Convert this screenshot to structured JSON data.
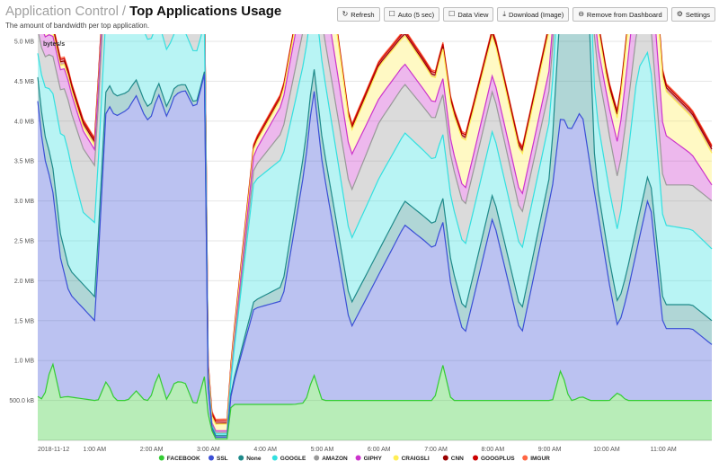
{
  "header": {
    "breadcrumb_parent": "Application Control",
    "breadcrumb_sep": "/",
    "title": "Top Applications Usage",
    "subtitle": "The amount of bandwidth per top application."
  },
  "toolbar": {
    "refresh": "Refresh",
    "auto": "Auto (5 sec)",
    "data_view": "Data View",
    "download": "Download (Image)",
    "remove": "Remove from Dashboard",
    "settings": "Settings"
  },
  "chart_data": {
    "type": "area",
    "stacked": true,
    "ylabel": "bytes/s",
    "y_ticks": [
      "500.0 kB",
      "1.0 MB",
      "1.5 MB",
      "2.0 MB",
      "2.5 MB",
      "3.0 MB",
      "3.5 MB",
      "4.0 MB",
      "4.5 MB",
      "5.0 MB"
    ],
    "y_tick_values": [
      0.5,
      1.0,
      1.5,
      2.0,
      2.5,
      3.0,
      3.5,
      4.0,
      4.5,
      5.0
    ],
    "ylim": [
      0,
      5.0
    ],
    "x_ticks": [
      "2018-11-12",
      "1:00 AM",
      "2:00 AM",
      "3:00 AM",
      "4:00 AM",
      "5:00 AM",
      "6:00 AM",
      "7:00 AM",
      "8:00 AM",
      "9:00 AM",
      "10:00 AM",
      "11:00 AM"
    ],
    "x_tick_values": [
      0,
      1,
      2,
      3,
      4,
      5,
      6,
      7,
      8,
      9,
      10,
      11
    ],
    "xlim": [
      0,
      11.85
    ],
    "legend_position": "bottom-center",
    "grid": true,
    "series": [
      {
        "name": "FACEBOOK",
        "color": "#33cc33",
        "points": [
          [
            0,
            0.45
          ],
          [
            0.22,
            0.5
          ],
          [
            0.5,
            0.55
          ],
          [
            1.0,
            0.5
          ],
          [
            1.5,
            0.5
          ],
          [
            2.0,
            0.5
          ],
          [
            2.5,
            0.5
          ],
          [
            2.95,
            0.45
          ],
          [
            3.0,
            0.02
          ],
          [
            3.35,
            0.02
          ],
          [
            3.4,
            0.45
          ],
          [
            4.0,
            0.45
          ],
          [
            4.5,
            0.45
          ],
          [
            5.0,
            0.5
          ],
          [
            5.5,
            0.5
          ],
          [
            6.0,
            0.5
          ],
          [
            6.5,
            0.5
          ],
          [
            7.0,
            0.5
          ],
          [
            7.5,
            0.5
          ],
          [
            8.0,
            0.5
          ],
          [
            8.5,
            0.5
          ],
          [
            9.0,
            0.5
          ],
          [
            9.5,
            0.5
          ],
          [
            10.0,
            0.5
          ],
          [
            10.5,
            0.5
          ],
          [
            11.0,
            0.5
          ],
          [
            11.5,
            0.5
          ],
          [
            11.85,
            0.5
          ]
        ],
        "spikes": [
          [
            0,
            0.1
          ],
          [
            0.25,
            0.5
          ],
          [
            1.21,
            0.25
          ],
          [
            1.73,
            0.12
          ],
          [
            2.12,
            0.35
          ],
          [
            2.42,
            0.25
          ],
          [
            2.58,
            0.25
          ],
          [
            2.95,
            0.4
          ],
          [
            4.85,
            0.35
          ],
          [
            7.12,
            0.45
          ],
          [
            9.2,
            0.4
          ],
          [
            9.56,
            0.05
          ],
          [
            10.2,
            0.1
          ]
        ]
      },
      {
        "name": "SSL",
        "color": "#3b4fd6",
        "points": [
          [
            0,
            3.7
          ],
          [
            0.25,
            2.2
          ],
          [
            0.55,
            1.3
          ],
          [
            1.0,
            1.0
          ],
          [
            1.21,
            3.5
          ],
          [
            1.73,
            3.7
          ],
          [
            1.95,
            3.5
          ],
          [
            2.12,
            3.5
          ],
          [
            2.42,
            3.6
          ],
          [
            2.95,
            3.8
          ],
          [
            3.0,
            0.02
          ],
          [
            3.35,
            0.02
          ],
          [
            3.8,
            1.2
          ],
          [
            4.3,
            1.3
          ],
          [
            4.85,
            3.6
          ],
          [
            5.5,
            0.9
          ],
          [
            6.45,
            2.2
          ],
          [
            6.8,
            2.0
          ],
          [
            7.12,
            1.8
          ],
          [
            7.5,
            0.8
          ],
          [
            8.0,
            2.3
          ],
          [
            8.5,
            0.8
          ],
          [
            9.2,
            3.2
          ],
          [
            9.56,
            3.6
          ],
          [
            10.2,
            0.8
          ],
          [
            10.75,
            2.6
          ],
          [
            11.0,
            0.9
          ],
          [
            11.5,
            0.9
          ],
          [
            11.85,
            0.7
          ]
        ]
      },
      {
        "name": "None",
        "color": "#1e8a8a",
        "points": [
          [
            0,
            0.3
          ],
          [
            1.0,
            0.3
          ],
          [
            3.0,
            0.02
          ],
          [
            3.35,
            0.02
          ],
          [
            5.0,
            0.3
          ],
          [
            9.0,
            0.3
          ],
          [
            9.56,
            3.6
          ],
          [
            9.8,
            0.3
          ],
          [
            11.85,
            0.3
          ]
        ]
      },
      {
        "name": "GOOGLE",
        "color": "#33e0e0",
        "points": [
          [
            0,
            0.3
          ],
          [
            0.5,
            1.5
          ],
          [
            0.8,
            0.9
          ],
          [
            1.5,
            1.0
          ],
          [
            2.3,
            0.7
          ],
          [
            2.95,
            0.6
          ],
          [
            3.0,
            0.02
          ],
          [
            3.35,
            0.02
          ],
          [
            3.8,
            1.5
          ],
          [
            4.3,
            1.6
          ],
          [
            4.8,
            1.0
          ],
          [
            5.5,
            0.8
          ],
          [
            6.0,
            0.9
          ],
          [
            7.0,
            0.8
          ],
          [
            8.0,
            0.8
          ],
          [
            9.0,
            0.7
          ],
          [
            10.2,
            0.9
          ],
          [
            10.55,
            1.9
          ],
          [
            11.0,
            1.0
          ],
          [
            11.85,
            0.9
          ]
        ]
      },
      {
        "name": "AMAZON",
        "color": "#999999",
        "points": [
          [
            0,
            0.3
          ],
          [
            0.8,
            0.8
          ],
          [
            1.5,
            0.5
          ],
          [
            2.95,
            0.4
          ],
          [
            3.0,
            0.02
          ],
          [
            3.35,
            0.02
          ],
          [
            4.5,
            0.4
          ],
          [
            6.0,
            0.7
          ],
          [
            7.0,
            0.5
          ],
          [
            8.0,
            0.5
          ],
          [
            9.0,
            0.4
          ],
          [
            10.0,
            0.7
          ],
          [
            11.0,
            0.5
          ],
          [
            11.85,
            0.6
          ]
        ]
      },
      {
        "name": "GIPHY",
        "color": "#cc33cc",
        "points": [
          [
            0,
            0.25
          ],
          [
            0.5,
            0.25
          ],
          [
            1.0,
            0.2
          ],
          [
            2.95,
            0.15
          ],
          [
            3.0,
            0.02
          ],
          [
            3.35,
            0.02
          ],
          [
            5.0,
            0.6
          ],
          [
            6.0,
            0.3
          ],
          [
            7.0,
            0.2
          ],
          [
            8.0,
            0.2
          ],
          [
            10.0,
            0.3
          ],
          [
            10.7,
            0.8
          ],
          [
            11.85,
            0.2
          ]
        ]
      },
      {
        "name": "CRAIGSLI",
        "color": "#ffee55",
        "points": [
          [
            0,
            0.05
          ],
          [
            4.8,
            0.1
          ],
          [
            5.0,
            0.85
          ],
          [
            5.2,
            0.5
          ],
          [
            5.5,
            0.3
          ],
          [
            6.0,
            0.4
          ],
          [
            7.0,
            0.3
          ],
          [
            7.5,
            0.6
          ],
          [
            8.0,
            0.5
          ],
          [
            9.0,
            0.5
          ],
          [
            10.0,
            0.2
          ],
          [
            10.8,
            0.6
          ],
          [
            11.85,
            0.4
          ]
        ]
      },
      {
        "name": "CNN",
        "color": "#990000",
        "points": [
          [
            0,
            0.05
          ],
          [
            3.0,
            0.01
          ],
          [
            10.5,
            0.05
          ],
          [
            10.75,
            2.25
          ],
          [
            10.85,
            0.05
          ],
          [
            11.85,
            0.05
          ]
        ]
      },
      {
        "name": "GOOGPLUS",
        "color": "#cc0000",
        "points": [
          [
            0,
            0.03
          ],
          [
            11.85,
            0.03
          ]
        ]
      },
      {
        "name": "IMGUR",
        "color": "#ff6644",
        "points": [
          [
            0,
            0.02
          ],
          [
            11.85,
            0.02
          ]
        ]
      }
    ]
  }
}
